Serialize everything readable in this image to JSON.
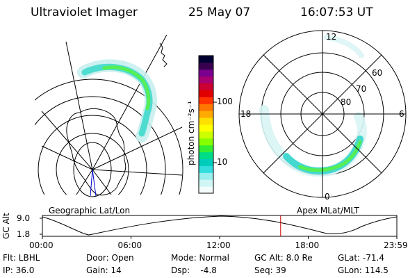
{
  "header": {
    "instrument": "Ultraviolet Imager",
    "date": "25 May 07",
    "time": "16:07:53 UT"
  },
  "geo_panel": {
    "label": "Geographic Lat/Lon"
  },
  "mag_panel": {
    "label": "Apex MLat/MLT",
    "mlt_labels": [
      "12",
      "18",
      "6",
      "0"
    ],
    "lat_labels": [
      "60",
      "70",
      "80"
    ]
  },
  "colorbar": {
    "unit_label": "photon cm⁻²s⁻¹",
    "tick_labels": [
      "100",
      "10"
    ],
    "colors": [
      "#000033",
      "#3a0050",
      "#7a0090",
      "#a80070",
      "#cc0030",
      "#e00000",
      "#ff3300",
      "#ff7700",
      "#ffaa00",
      "#ffe000",
      "#ffff00",
      "#ccff00",
      "#88ff00",
      "#33ee33",
      "#00dd88",
      "#00ccbb",
      "#33dddd",
      "#99eeee",
      "#d0f6f6",
      "#f4fcfc"
    ]
  },
  "timeline": {
    "axis_title": "GC Alt",
    "y_ticks": [
      "9.0",
      "1.8"
    ],
    "x_ticks": [
      "00:00",
      "06:00",
      "12:00",
      "18:00",
      "23:59"
    ],
    "current_time_hours": 16.13,
    "marker_color": "#cc0000"
  },
  "info": {
    "flt": "Flt: LBHL",
    "ip": "IP: 36.0",
    "door": "Door: Open",
    "gain": "Gain: 14",
    "mode": "Mode: Normal",
    "dsp": "Dsp:    -4.8",
    "gcalt": "GC Alt: 8.0 Re",
    "seq": "Seq: 39",
    "glat": "GLat: -71.4",
    "glon": "GLon: 114.5"
  }
}
